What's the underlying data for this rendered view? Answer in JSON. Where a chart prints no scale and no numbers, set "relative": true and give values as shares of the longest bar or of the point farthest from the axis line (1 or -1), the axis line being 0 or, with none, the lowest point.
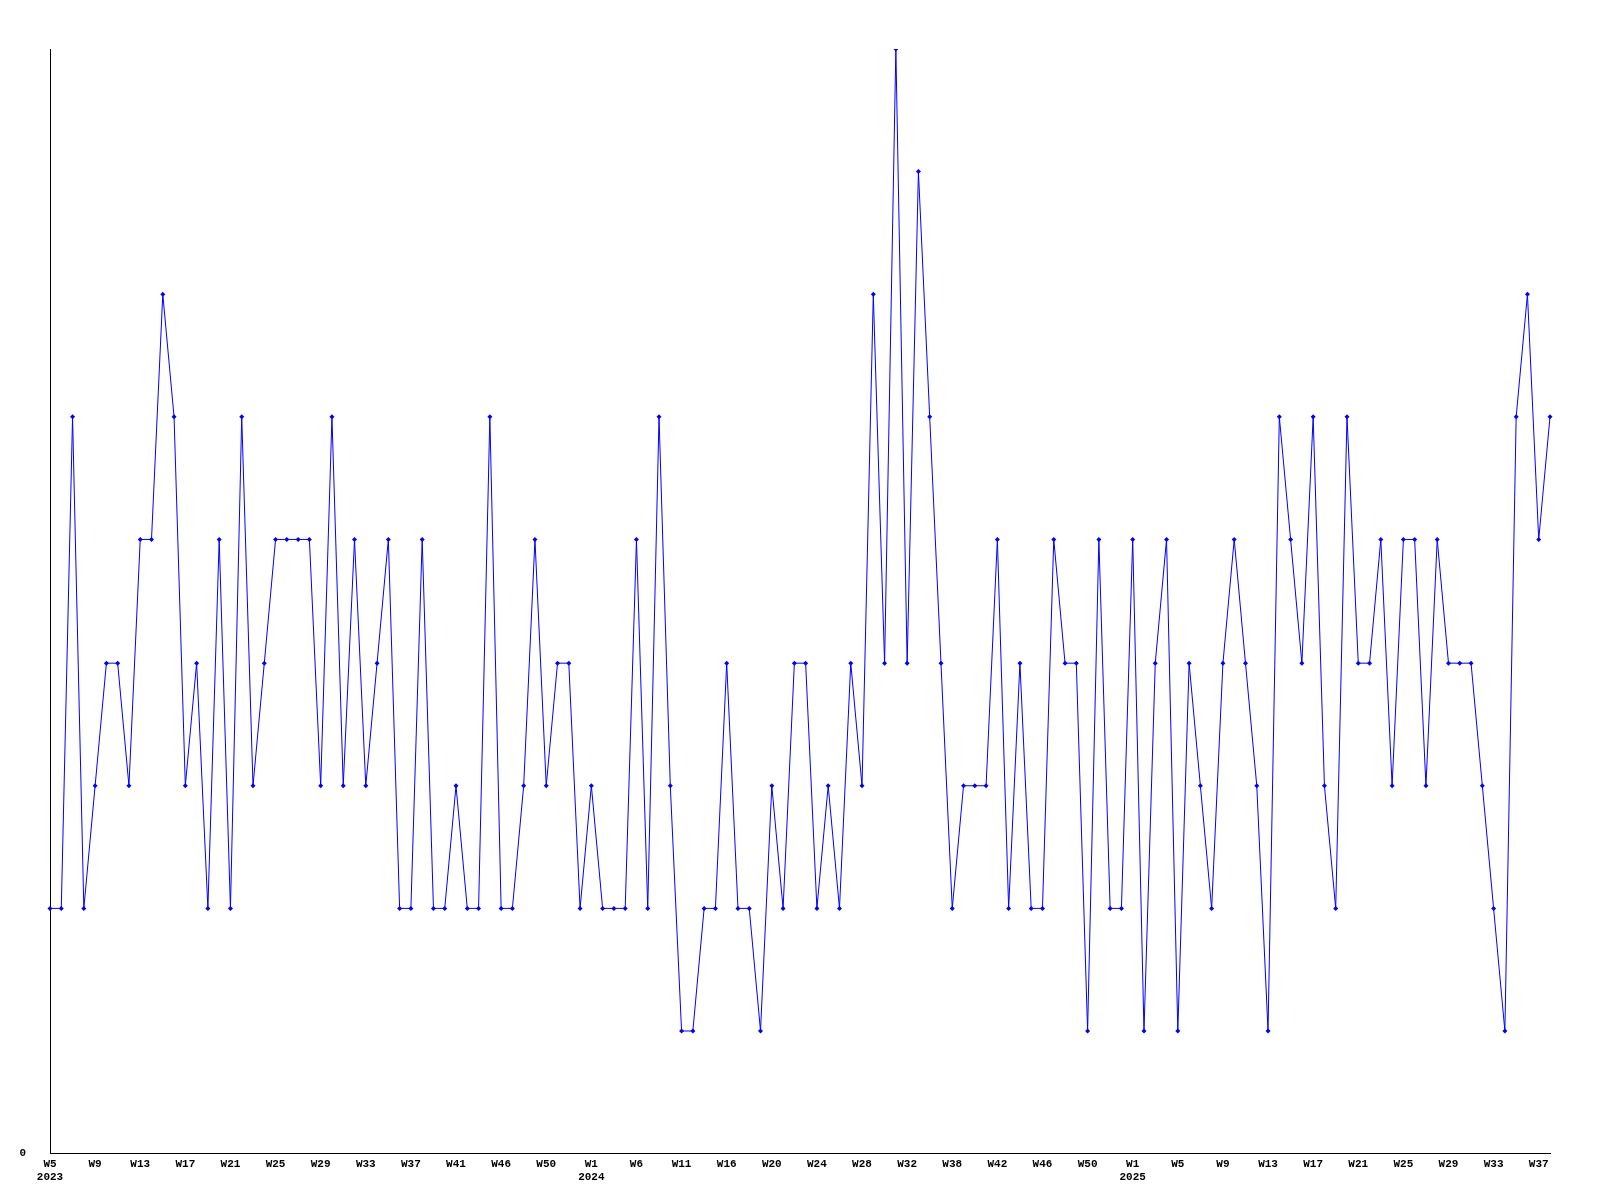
{
  "chart_data": {
    "type": "line",
    "relative": true,
    "color": "#0000ff",
    "marker": "diamond",
    "line_style": "solid",
    "grid": false,
    "legend": false,
    "annotations": [
      "0"
    ],
    "categories": [
      "W5\n2023",
      null,
      null,
      null,
      "W9",
      null,
      null,
      null,
      "W13",
      null,
      null,
      null,
      "W17",
      null,
      null,
      null,
      "W21",
      null,
      null,
      null,
      "W25",
      null,
      null,
      null,
      "W29",
      null,
      null,
      null,
      "W33",
      null,
      null,
      null,
      "W37",
      null,
      null,
      null,
      "W41",
      null,
      null,
      null,
      "W46",
      null,
      null,
      null,
      "W50",
      null,
      null,
      null,
      "W1\n2024",
      null,
      null,
      null,
      "W6",
      null,
      null,
      null,
      "W11",
      null,
      null,
      null,
      "W16",
      null,
      null,
      null,
      "W20",
      null,
      null,
      null,
      "W24",
      null,
      null,
      null,
      "W28",
      null,
      null,
      null,
      "W32",
      null,
      null,
      null,
      "W38",
      null,
      null,
      null,
      "W42",
      null,
      null,
      null,
      "W46",
      null,
      null,
      null,
      "W50",
      null,
      null,
      null,
      "W1\n2025",
      null,
      null,
      null,
      "W5",
      null,
      null,
      null,
      "W9",
      null,
      null,
      null,
      "W13",
      null,
      null,
      null,
      "W17",
      null,
      null,
      null,
      "W21",
      null,
      null,
      null,
      "W25",
      null,
      null,
      null,
      "W29",
      null,
      null,
      null,
      "W33",
      null,
      null,
      null,
      "W37",
      null
    ],
    "values": [
      0.222,
      0.222,
      0.667,
      0.222,
      0.333,
      0.444,
      0.444,
      0.333,
      0.556,
      0.556,
      0.778,
      0.667,
      0.333,
      0.444,
      0.222,
      0.556,
      0.222,
      0.667,
      0.333,
      0.444,
      0.556,
      0.556,
      0.556,
      0.556,
      0.333,
      0.667,
      0.333,
      0.556,
      0.333,
      0.444,
      0.556,
      0.222,
      0.222,
      0.556,
      0.222,
      0.222,
      0.333,
      0.222,
      0.222,
      0.667,
      0.222,
      0.222,
      0.333,
      0.556,
      0.333,
      0.444,
      0.444,
      0.222,
      0.333,
      0.222,
      0.222,
      0.222,
      0.556,
      0.222,
      0.667,
      0.333,
      0.111,
      0.111,
      0.222,
      0.222,
      0.444,
      0.222,
      0.222,
      0.111,
      0.333,
      0.222,
      0.444,
      0.444,
      0.222,
      0.333,
      0.222,
      0.444,
      0.333,
      0.778,
      0.444,
      1,
      0.444,
      0.889,
      0.667,
      0.444,
      0.222,
      0.333,
      0.333,
      0.333,
      0.556,
      0.222,
      0.444,
      0.222,
      0.222,
      0.556,
      0.444,
      0.444,
      0.111,
      0.556,
      0.222,
      0.222,
      0.556,
      0.111,
      0.444,
      0.556,
      0.111,
      0.444,
      0.333,
      0.222,
      0.444,
      0.556,
      0.444,
      0.333,
      0.111,
      0.667,
      0.556,
      0.444,
      0.667,
      0.333,
      0.222,
      0.667,
      0.444,
      0.444,
      0.556,
      0.333,
      0.556,
      0.556,
      0.333,
      0.556,
      0.444,
      0.444,
      0.444,
      0.333,
      0.222,
      0.111,
      0.667,
      0.778,
      0.556,
      0.667
    ]
  }
}
